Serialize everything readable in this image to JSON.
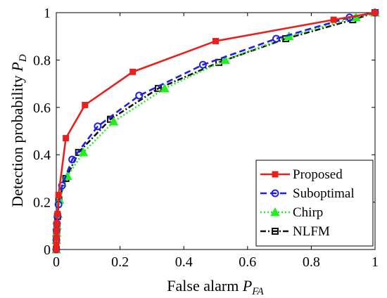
{
  "chart_data": {
    "type": "line",
    "xlabel": "False alarm",
    "xlabel_symbol": "P",
    "xlabel_sub": "FA",
    "ylabel": "Detection probability",
    "ylabel_symbol": "P",
    "ylabel_sub": "D",
    "xlim": [
      0,
      1
    ],
    "ylim": [
      0,
      1
    ],
    "xticks": [
      "0",
      "0.2",
      "0.4",
      "0.6",
      "0.8",
      "1"
    ],
    "yticks": [
      "0",
      "0.2",
      "0.4",
      "0.6",
      "0.8",
      "1"
    ],
    "grid": false,
    "legend_position": "bottom-right",
    "series": [
      {
        "name": "Proposed",
        "color": "#e8211d",
        "line_style": "solid",
        "marker": "filled-square",
        "x": [
          0,
          0.0002,
          0.0005,
          0.001,
          0.002,
          0.004,
          0.007,
          0.03,
          0.09,
          0.24,
          0.5,
          0.87,
          1
        ],
        "y": [
          0,
          0.02,
          0.05,
          0.08,
          0.11,
          0.15,
          0.23,
          0.47,
          0.61,
          0.75,
          0.88,
          0.97,
          1
        ]
      },
      {
        "name": "Suboptimal",
        "color": "#1f1fe8",
        "line_style": "dashed",
        "marker": "circle",
        "x": [
          0,
          0.0003,
          0.001,
          0.002,
          0.004,
          0.007,
          0.018,
          0.05,
          0.13,
          0.26,
          0.46,
          0.69,
          0.92,
          1
        ],
        "y": [
          0,
          0.04,
          0.08,
          0.11,
          0.14,
          0.19,
          0.27,
          0.38,
          0.52,
          0.65,
          0.78,
          0.89,
          0.98,
          1
        ]
      },
      {
        "name": "Chirp",
        "color": "#22ee22",
        "line_style": "dotted",
        "marker": "filled-triangle",
        "x": [
          0,
          0.0005,
          0.001,
          0.002,
          0.005,
          0.01,
          0.035,
          0.085,
          0.18,
          0.34,
          0.53,
          0.73,
          0.94,
          1
        ],
        "y": [
          0,
          0.04,
          0.07,
          0.1,
          0.15,
          0.21,
          0.31,
          0.41,
          0.54,
          0.68,
          0.8,
          0.9,
          0.98,
          1
        ]
      },
      {
        "name": "NLFM",
        "color": "#111111",
        "line_style": "dash-dot",
        "marker": "square",
        "x": [
          0,
          0.0004,
          0.001,
          0.002,
          0.004,
          0.008,
          0.03,
          0.07,
          0.17,
          0.32,
          0.51,
          0.72,
          0.93,
          1
        ],
        "y": [
          0,
          0.04,
          0.07,
          0.1,
          0.14,
          0.21,
          0.3,
          0.41,
          0.55,
          0.68,
          0.79,
          0.89,
          0.97,
          1
        ]
      }
    ]
  }
}
